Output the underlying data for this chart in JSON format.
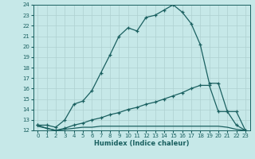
{
  "xlabel": "Humidex (Indice chaleur)",
  "xlim": [
    -0.5,
    23.5
  ],
  "ylim": [
    12,
    24
  ],
  "xticks": [
    0,
    1,
    2,
    3,
    4,
    5,
    6,
    7,
    8,
    9,
    10,
    11,
    12,
    13,
    14,
    15,
    16,
    17,
    18,
    19,
    20,
    21,
    22,
    23
  ],
  "yticks": [
    12,
    13,
    14,
    15,
    16,
    17,
    18,
    19,
    20,
    21,
    22,
    23,
    24
  ],
  "bg_color": "#c6e8e8",
  "grid_color": "#aed0d0",
  "line_color": "#1a6060",
  "line1_x": [
    0,
    1,
    2,
    3,
    4,
    5,
    6,
    7,
    8,
    9,
    10,
    11,
    12,
    13,
    14,
    15,
    16,
    17,
    18,
    19,
    20,
    21,
    22,
    23
  ],
  "line1_y": [
    12.5,
    12.5,
    12.3,
    13.0,
    14.5,
    14.8,
    15.8,
    17.5,
    19.2,
    21.0,
    21.8,
    21.5,
    22.8,
    23.0,
    23.5,
    24.0,
    23.3,
    22.2,
    20.2,
    16.5,
    16.5,
    13.8,
    13.8,
    12.0
  ],
  "line2_x": [
    0,
    1,
    2,
    3,
    4,
    5,
    6,
    7,
    8,
    9,
    10,
    11,
    12,
    13,
    14,
    15,
    16,
    17,
    18,
    19,
    20,
    21,
    22,
    23
  ],
  "line2_y": [
    12.5,
    12.2,
    12.0,
    12.2,
    12.5,
    12.7,
    13.0,
    13.2,
    13.5,
    13.7,
    14.0,
    14.2,
    14.5,
    14.7,
    15.0,
    15.3,
    15.6,
    16.0,
    16.3,
    16.3,
    13.8,
    13.8,
    12.5,
    12.0
  ],
  "line3_x": [
    0,
    1,
    2,
    3,
    4,
    5,
    6,
    7,
    8,
    9,
    10,
    11,
    12,
    13,
    14,
    15,
    16,
    17,
    18,
    19,
    20,
    21,
    22,
    23
  ],
  "line3_y": [
    12.4,
    12.2,
    12.0,
    12.1,
    12.2,
    12.3,
    12.3,
    12.4,
    12.4,
    12.4,
    12.4,
    12.4,
    12.4,
    12.4,
    12.4,
    12.4,
    12.4,
    12.4,
    12.4,
    12.4,
    12.4,
    12.3,
    12.1,
    12.0
  ]
}
